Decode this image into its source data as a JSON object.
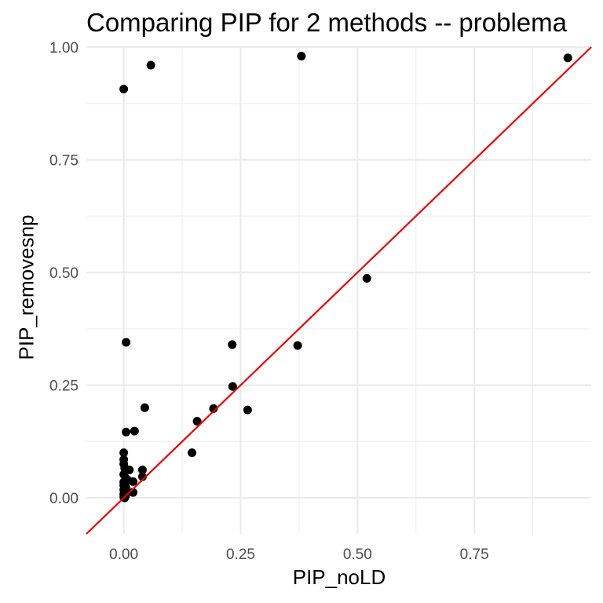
{
  "chart_data": {
    "type": "scatter",
    "title": "Comparing PIP for 2 methods -- problema",
    "xlabel": "PIP_noLD",
    "ylabel": "PIP_removesnp",
    "xlim": [
      -0.08,
      1.0
    ],
    "ylim": [
      -0.08,
      1.0
    ],
    "x_ticks": [
      0.0,
      0.25,
      0.5,
      0.75
    ],
    "y_ticks": [
      0.0,
      0.25,
      0.5,
      0.75,
      1.0
    ],
    "x_tick_labels": [
      "0.00",
      "0.25",
      "0.50",
      "0.75"
    ],
    "y_tick_labels": [
      "0.00",
      "0.25",
      "0.50",
      "0.75",
      "1.00"
    ],
    "grid": true,
    "reference_line": {
      "slope": 1,
      "intercept": 0,
      "color": "#ee0000"
    },
    "point_color": "#000000",
    "points": [
      {
        "x": 0.0,
        "y": 0.907
      },
      {
        "x": 0.058,
        "y": 0.96
      },
      {
        "x": 0.38,
        "y": 0.98
      },
      {
        "x": 0.95,
        "y": 0.976
      },
      {
        "x": 0.52,
        "y": 0.487
      },
      {
        "x": 0.005,
        "y": 0.345
      },
      {
        "x": 0.232,
        "y": 0.34
      },
      {
        "x": 0.372,
        "y": 0.338
      },
      {
        "x": 0.233,
        "y": 0.247
      },
      {
        "x": 0.045,
        "y": 0.2
      },
      {
        "x": 0.192,
        "y": 0.198
      },
      {
        "x": 0.265,
        "y": 0.195
      },
      {
        "x": 0.157,
        "y": 0.17
      },
      {
        "x": 0.005,
        "y": 0.146
      },
      {
        "x": 0.023,
        "y": 0.148
      },
      {
        "x": 0.146,
        "y": 0.1
      },
      {
        "x": 0.0,
        "y": 0.1
      },
      {
        "x": 0.0,
        "y": 0.085
      },
      {
        "x": 0.0,
        "y": 0.075
      },
      {
        "x": 0.002,
        "y": 0.066
      },
      {
        "x": 0.012,
        "y": 0.062
      },
      {
        "x": 0.04,
        "y": 0.062
      },
      {
        "x": 0.0,
        "y": 0.052
      },
      {
        "x": 0.04,
        "y": 0.047
      },
      {
        "x": 0.005,
        "y": 0.043
      },
      {
        "x": 0.0,
        "y": 0.035
      },
      {
        "x": 0.01,
        "y": 0.038
      },
      {
        "x": 0.02,
        "y": 0.036
      },
      {
        "x": 0.0,
        "y": 0.028
      },
      {
        "x": 0.005,
        "y": 0.022
      },
      {
        "x": 0.0,
        "y": 0.018
      },
      {
        "x": 0.008,
        "y": 0.014
      },
      {
        "x": 0.02,
        "y": 0.012
      },
      {
        "x": 0.0,
        "y": 0.008
      },
      {
        "x": 0.004,
        "y": 0.005
      },
      {
        "x": 0.0,
        "y": 0.002
      },
      {
        "x": 0.002,
        "y": 0.0
      }
    ]
  }
}
